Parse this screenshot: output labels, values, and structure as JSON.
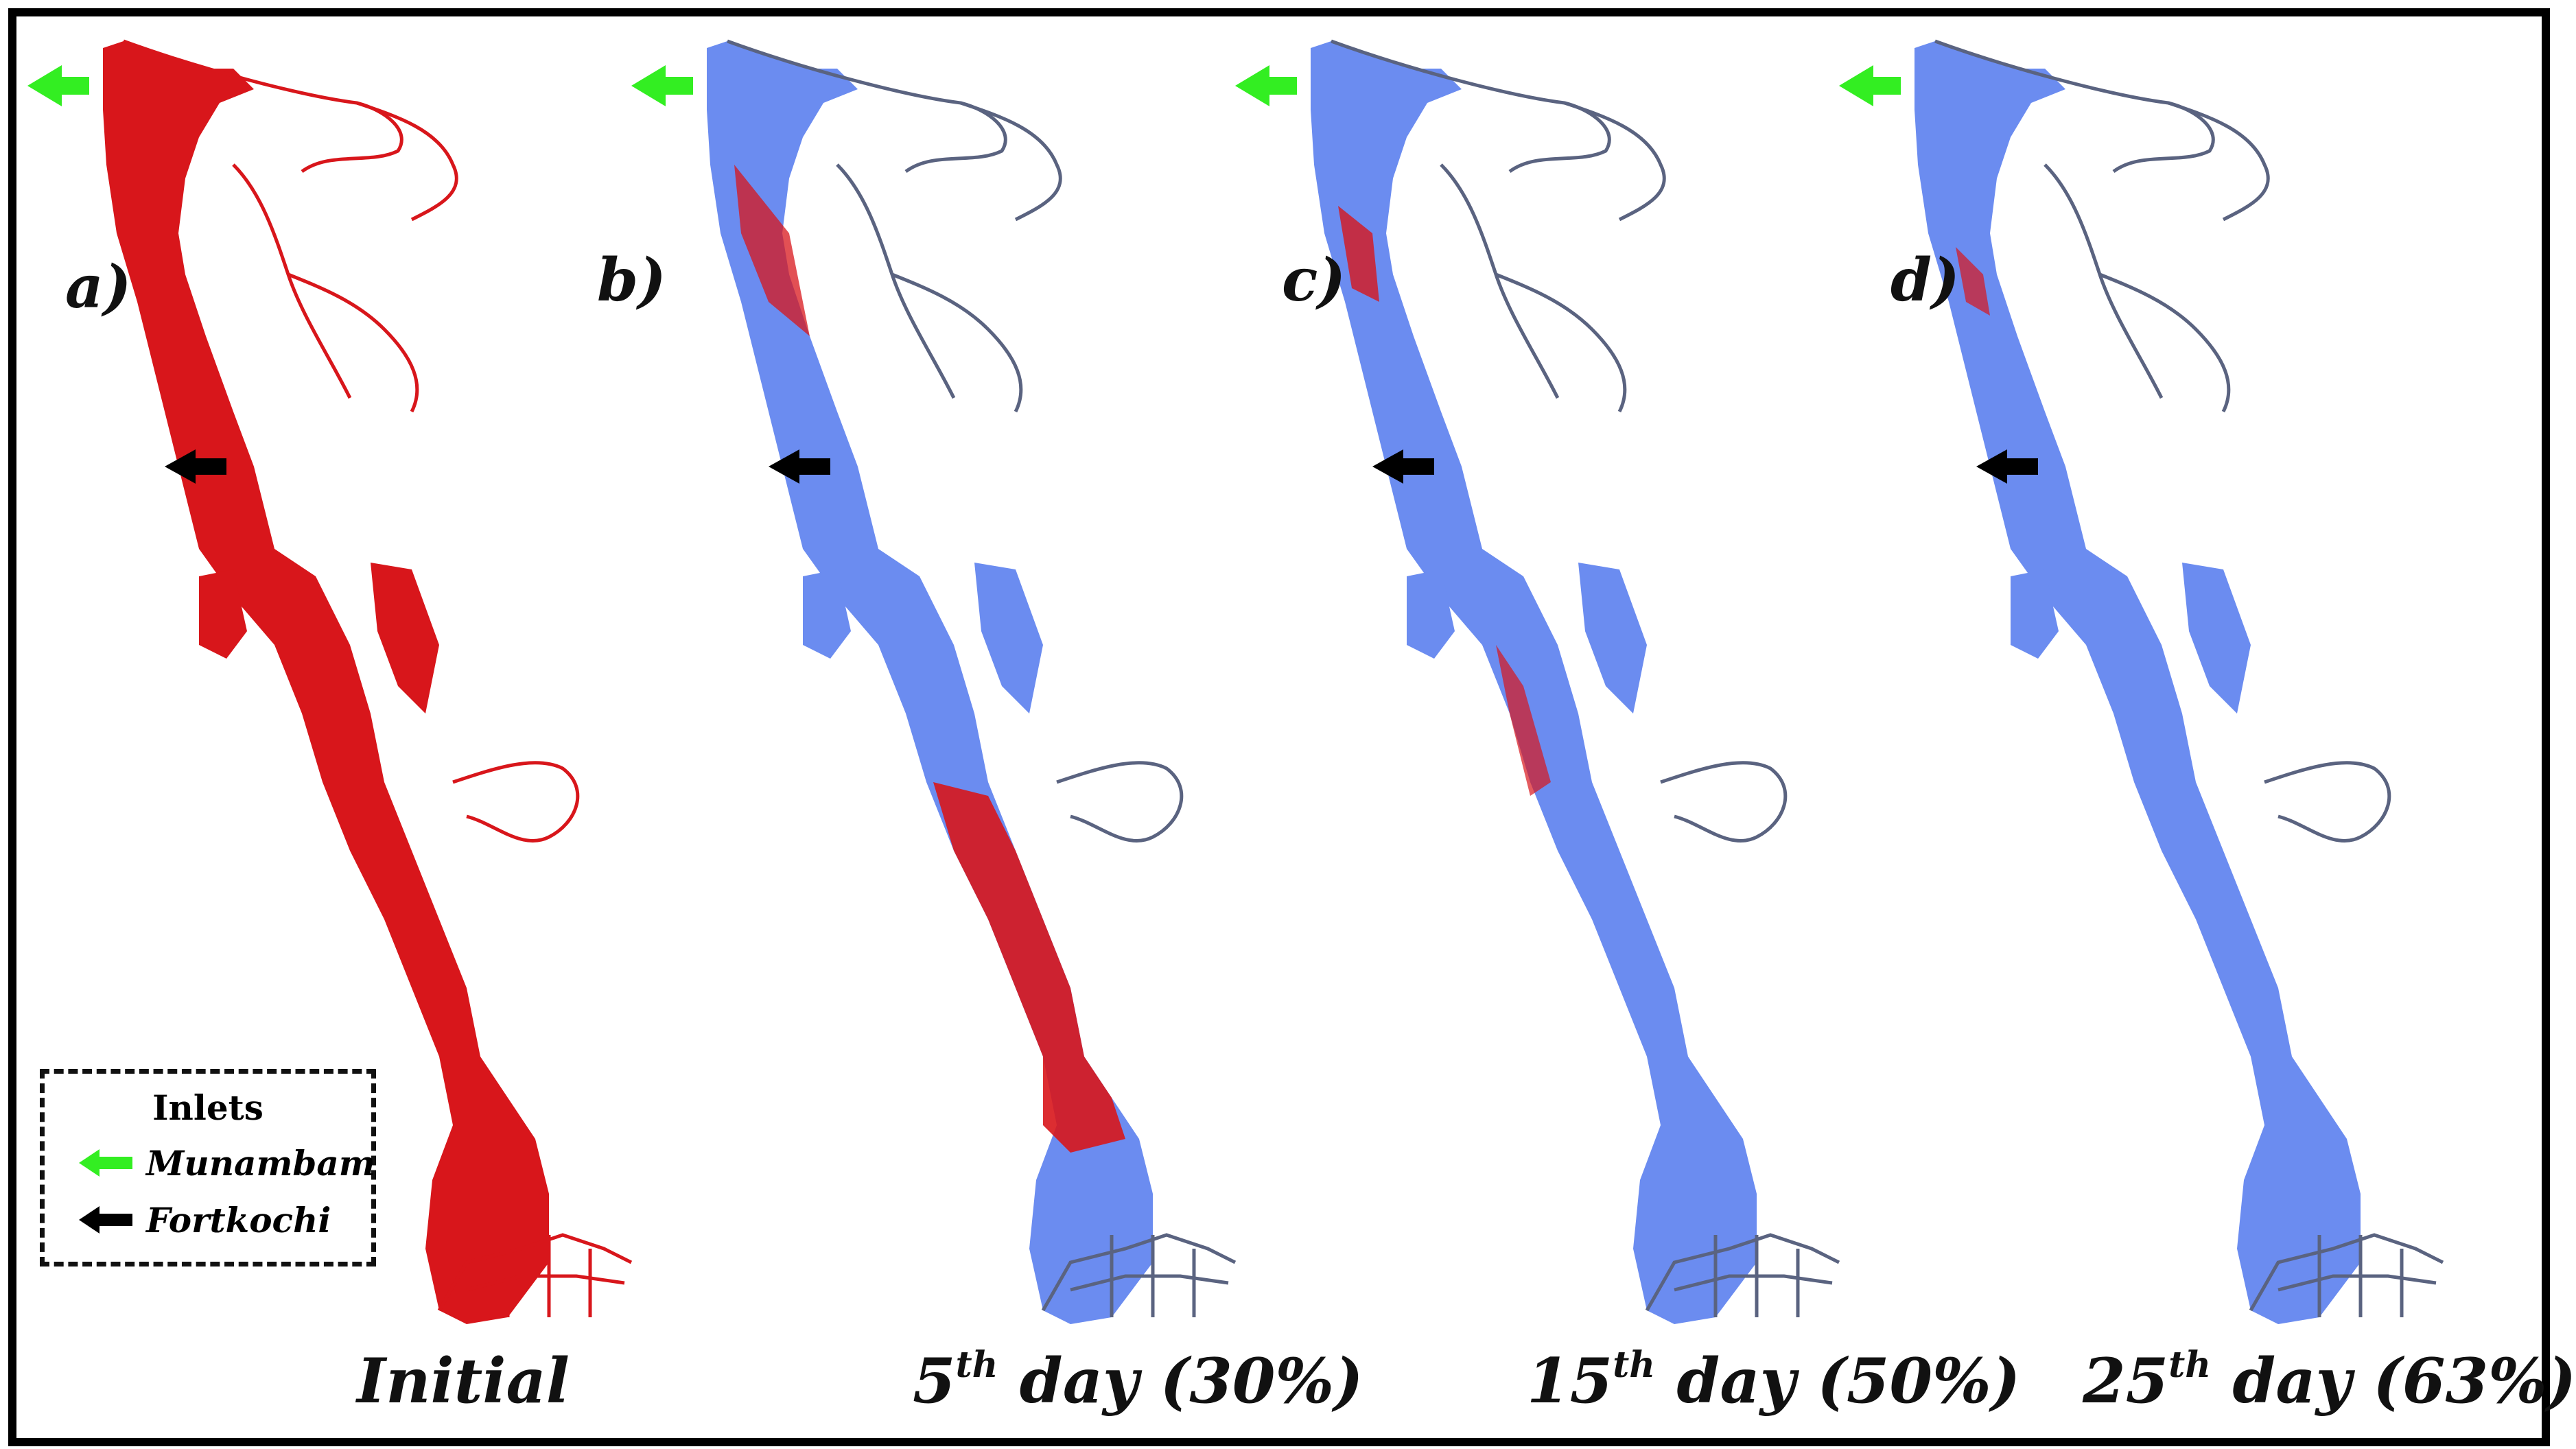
{
  "panels": [
    {
      "letter": "a)",
      "caption_main": "Initial",
      "caption_sup": "",
      "caption_rest": ""
    },
    {
      "letter": "b)",
      "caption_main": "5",
      "caption_sup": "th",
      "caption_rest": " day (30%)"
    },
    {
      "letter": "c)",
      "caption_main": "15",
      "caption_sup": "th",
      "caption_rest": " day (50%)"
    },
    {
      "letter": "d)",
      "caption_main": "25",
      "caption_sup": "th",
      "caption_rest": " day (63%)"
    }
  ],
  "legend": {
    "title": "Inlets",
    "items": [
      {
        "label": "Munambam",
        "color": "#33ee22",
        "icon": "green-arrow-left-icon"
      },
      {
        "label": "Fortkochi",
        "color": "#000000",
        "icon": "black-arrow-left-icon"
      }
    ]
  },
  "colors": {
    "water_body": "#6b8cf0",
    "tracer": "#d8161b",
    "channel_line": "#5a6380",
    "munambam_arrow": "#33ee22",
    "fortkochi_arrow": "#000000"
  }
}
